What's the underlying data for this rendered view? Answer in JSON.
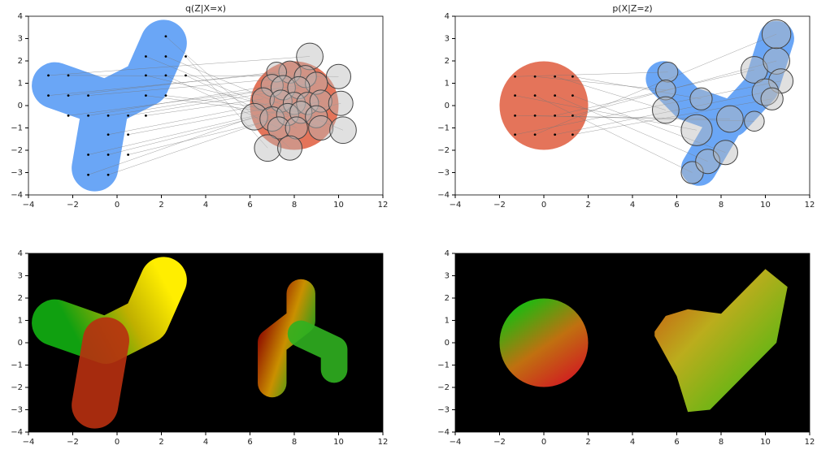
{
  "chart_data": [
    {
      "type": "scatter",
      "title": "q(Z|X=x)",
      "connect": true,
      "xlim": [
        -4,
        12
      ],
      "ylim": [
        -4,
        4
      ],
      "xticks": [
        {
          "value": -4,
          "label": "−4"
        },
        {
          "value": -2,
          "label": "−2"
        },
        0,
        2,
        4,
        6,
        8,
        10,
        12
      ],
      "yticks": [
        {
          "value": -4,
          "label": "−4"
        },
        {
          "value": -3,
          "label": "−3"
        },
        {
          "value": -2,
          "label": "−2"
        },
        {
          "value": -1,
          "label": "−1"
        },
        0,
        1,
        2,
        3,
        4
      ],
      "series": [
        {
          "color": "#000000",
          "x": [
            -3.1,
            -2.2,
            -3.1,
            -2.2,
            -1.3,
            -2.2,
            -1.3,
            -0.4,
            0.5,
            1.3,
            -0.4,
            0.5,
            -1.3,
            -0.4,
            0.5,
            -1.3,
            -0.4,
            1.3,
            2.2,
            1.3,
            2.2,
            3.1,
            1.3,
            2.2,
            3.1,
            2.2
          ],
          "y": [
            1.35,
            1.35,
            0.45,
            0.45,
            0.45,
            -0.45,
            -0.45,
            -0.45,
            -0.45,
            -0.45,
            -1.3,
            -1.3,
            -2.2,
            -2.2,
            -2.2,
            -3.1,
            -3.1,
            0.45,
            0.45,
            1.35,
            1.35,
            1.35,
            2.2,
            2.2,
            2.2,
            3.1
          ]
        },
        {
          "color": "#bbbbbb",
          "x": [
            8.7,
            10,
            7.8,
            7.2,
            8.5,
            9,
            7,
            7.5,
            8.2,
            6.6,
            7.4,
            8,
            8.6,
            9.2,
            10.1,
            6.2,
            7,
            7.7,
            8.3,
            9,
            7.3,
            8.1,
            9.2,
            10.2,
            6.8,
            7.8
          ],
          "y": [
            2.2,
            1.3,
            1.5,
            1.5,
            1.3,
            1,
            0.9,
            0.8,
            0.8,
            0.3,
            0.2,
            0.1,
            0.1,
            0.2,
            0.1,
            -0.5,
            -0.6,
            -0.4,
            -0.3,
            -0.5,
            -1,
            -1,
            -1,
            -1.1,
            -1.9,
            -1.9
          ],
          "sizes": [
            0.6,
            0.55,
            0.5,
            0.45,
            0.5,
            0.5,
            0.5,
            0.55,
            0.5,
            0.5,
            0.5,
            0.5,
            0.5,
            0.5,
            0.55,
            0.6,
            0.55,
            0.5,
            0.5,
            0.5,
            0.5,
            0.5,
            0.55,
            0.6,
            0.6,
            0.55
          ]
        }
      ]
    },
    {
      "type": "scatter",
      "title": "p(X|Z=z)",
      "connect": true,
      "xlim": [
        -4,
        12
      ],
      "ylim": [
        -4,
        4
      ],
      "xticks": [
        {
          "value": -4,
          "label": "−4"
        },
        {
          "value": -2,
          "label": "−2"
        },
        0,
        2,
        4,
        6,
        8,
        10,
        12
      ],
      "yticks": [
        {
          "value": -4,
          "label": "−4"
        },
        {
          "value": -3,
          "label": "−3"
        },
        {
          "value": -2,
          "label": "−2"
        },
        {
          "value": -1,
          "label": "−1"
        },
        0,
        1,
        2,
        3,
        4
      ],
      "series": [
        {
          "color": "#000000",
          "x": [
            -1.3,
            -0.4,
            0.5,
            1.3,
            -1.3,
            -0.4,
            0.5,
            1.3,
            -1.3,
            -0.4,
            0.5,
            1.3,
            -1.3,
            -0.4,
            0.5,
            1.3
          ],
          "y": [
            1.3,
            1.3,
            1.3,
            1.3,
            0.45,
            0.45,
            0.45,
            0.45,
            -0.45,
            -0.45,
            -0.45,
            -0.45,
            -1.3,
            -1.3,
            -1.3,
            -1.3
          ]
        },
        {
          "color": "#bbbbbb",
          "x": [
            5.6,
            5.5,
            5.5,
            7.1,
            6.9,
            6.7,
            7.4,
            8.2,
            8.4,
            9.5,
            9.5,
            10.5,
            10.7,
            10.5,
            10,
            10.3
          ],
          "y": [
            1.5,
            0.7,
            -0.2,
            0.3,
            -1.1,
            -3,
            -2.5,
            -2.1,
            -0.6,
            -0.7,
            1.6,
            2,
            1.1,
            3.2,
            0.6,
            0.3
          ],
          "sizes": [
            0.45,
            0.45,
            0.6,
            0.5,
            0.7,
            0.5,
            0.55,
            0.55,
            0.6,
            0.45,
            0.6,
            0.6,
            0.55,
            0.65,
            0.6,
            0.5
          ]
        }
      ]
    },
    {
      "type": "image",
      "background": "#000000",
      "xlim": [
        -4,
        12
      ],
      "ylim": [
        -4,
        4
      ],
      "xticks": [
        {
          "value": -4,
          "label": "−4"
        },
        {
          "value": -2,
          "label": "−2"
        },
        0,
        2,
        4,
        6,
        8,
        10,
        12
      ],
      "yticks": [
        {
          "value": -4,
          "label": "−4"
        },
        {
          "value": -3,
          "label": "−3"
        },
        {
          "value": -2,
          "label": "−2"
        },
        {
          "value": -1,
          "label": "−1"
        },
        0,
        1,
        2,
        3,
        4
      ]
    },
    {
      "type": "image",
      "background": "#000000",
      "xlim": [
        -4,
        12
      ],
      "ylim": [
        -4,
        4
      ],
      "xticks": [
        {
          "value": -4,
          "label": "−4"
        },
        {
          "value": -2,
          "label": "−2"
        },
        0,
        2,
        4,
        6,
        8,
        10,
        12
      ],
      "yticks": [
        {
          "value": -4,
          "label": "−4"
        },
        {
          "value": -3,
          "label": "−3"
        },
        {
          "value": -2,
          "label": "−2"
        },
        {
          "value": -1,
          "label": "−1"
        },
        0,
        1,
        2,
        3,
        4
      ]
    }
  ]
}
